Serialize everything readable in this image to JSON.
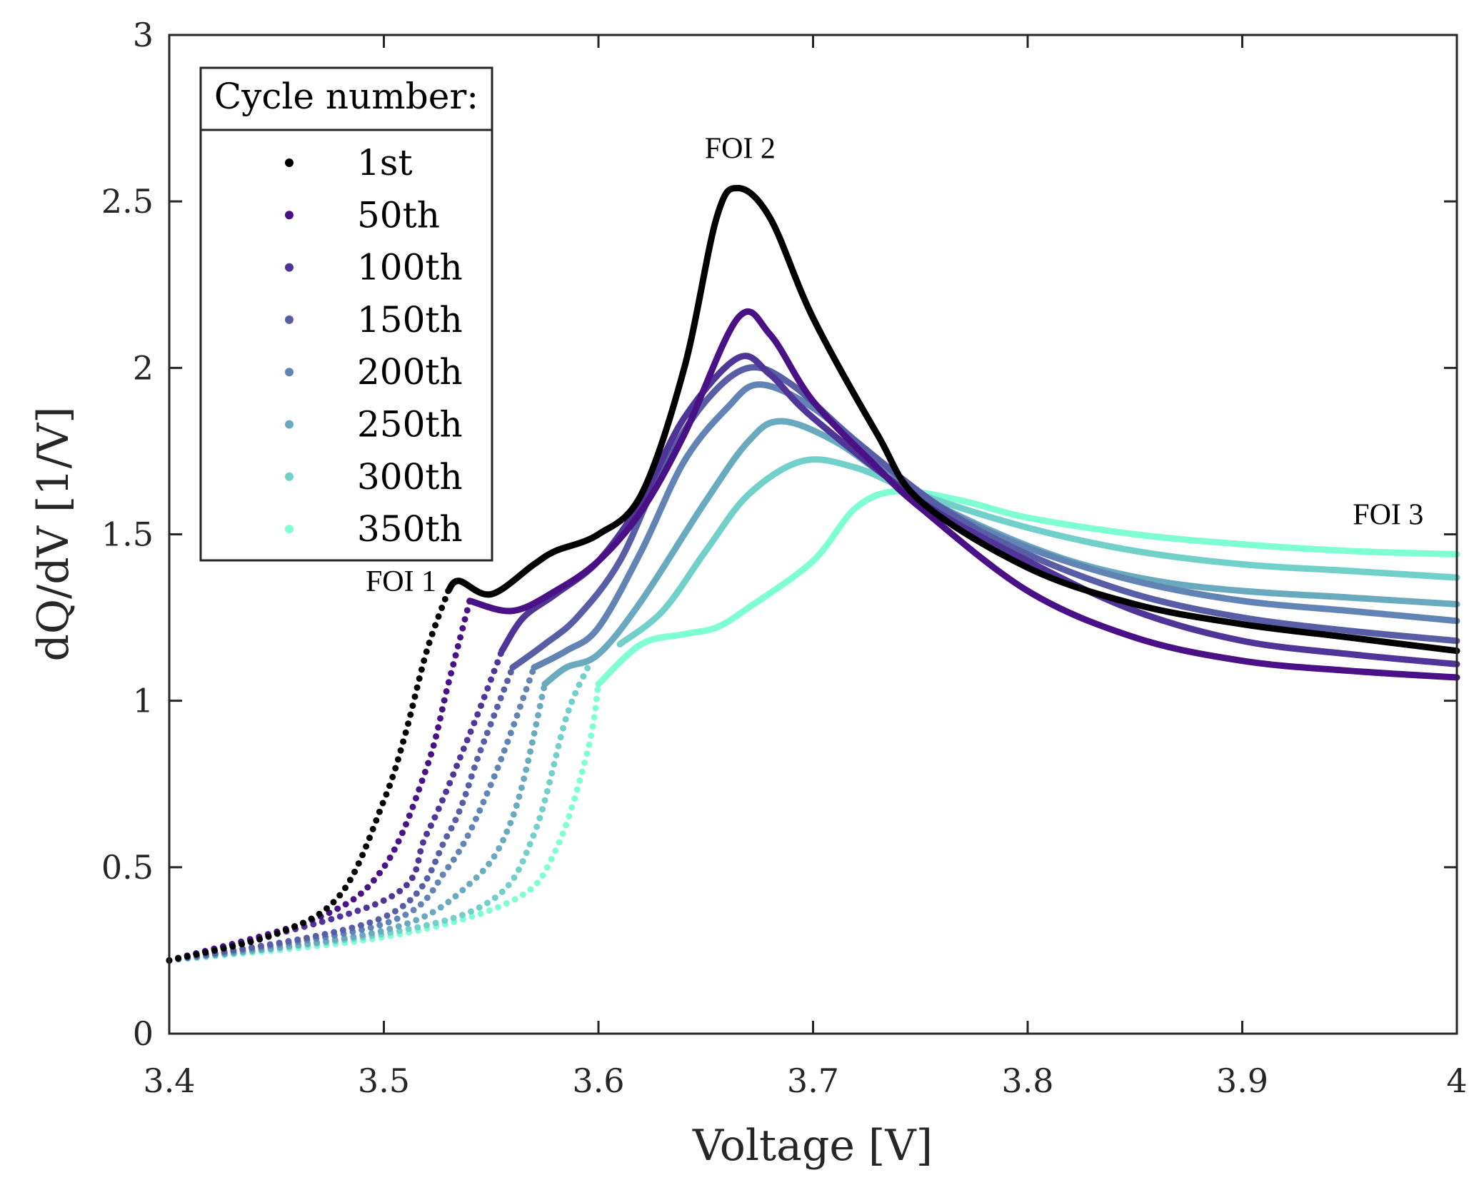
{
  "chart_data": {
    "type": "line",
    "xlabel": "Voltage [V]",
    "ylabel": "dQ/dV [1/V]",
    "xlim": [
      3.4,
      4.0
    ],
    "ylim": [
      0,
      3
    ],
    "xticks": [
      3.4,
      3.5,
      3.6,
      3.7,
      3.8,
      3.9,
      4
    ],
    "xtick_labels": [
      "3.4",
      "3.5",
      "3.6",
      "3.7",
      "3.8",
      "3.9",
      "4"
    ],
    "yticks": [
      0,
      0.5,
      1,
      1.5,
      2,
      2.5,
      3
    ],
    "ytick_labels": [
      "0",
      "0.5",
      "1",
      "1.5",
      "2",
      "2.5",
      "3"
    ],
    "grid": false,
    "legend": {
      "title": "Cycle number:",
      "placement": "top-left"
    },
    "annotations": [
      {
        "text": "FOI 1",
        "x": 3.508,
        "y": 1.33
      },
      {
        "text": "FOI 2",
        "x": 3.666,
        "y": 2.63
      },
      {
        "text": "FOI 3",
        "x": 3.968,
        "y": 1.53
      }
    ],
    "series": [
      {
        "name": "1st",
        "color": "#000000",
        "dots_until": 3.53,
        "x": [
          3.4,
          3.45,
          3.48,
          3.5,
          3.51,
          3.52,
          3.53,
          3.535,
          3.55,
          3.57,
          3.58,
          3.6,
          3.62,
          3.64,
          3.655,
          3.665,
          3.68,
          3.7,
          3.73,
          3.75,
          3.8,
          3.85,
          3.9,
          3.95,
          4.0
        ],
        "y": [
          0.22,
          0.3,
          0.42,
          0.7,
          0.9,
          1.15,
          1.33,
          1.36,
          1.32,
          1.41,
          1.45,
          1.5,
          1.62,
          2.0,
          2.45,
          2.54,
          2.45,
          2.15,
          1.8,
          1.6,
          1.4,
          1.29,
          1.23,
          1.19,
          1.15
        ]
      },
      {
        "name": "50th",
        "color": "#4a1186",
        "dots_until": 3.54,
        "x": [
          3.4,
          3.47,
          3.5,
          3.52,
          3.53,
          3.54,
          3.56,
          3.58,
          3.6,
          3.62,
          3.64,
          3.665,
          3.68,
          3.7,
          3.73,
          3.75,
          3.8,
          3.85,
          3.9,
          3.95,
          4.0
        ],
        "y": [
          0.22,
          0.35,
          0.5,
          0.8,
          1.05,
          1.3,
          1.27,
          1.33,
          1.42,
          1.57,
          1.8,
          2.15,
          2.1,
          1.9,
          1.7,
          1.58,
          1.33,
          1.19,
          1.12,
          1.09,
          1.07
        ]
      },
      {
        "name": "100th",
        "color": "#4f3597",
        "dots_until": 3.555,
        "x": [
          3.4,
          3.5,
          3.52,
          3.54,
          3.555,
          3.565,
          3.58,
          3.6,
          3.62,
          3.64,
          3.665,
          3.68,
          3.7,
          3.75,
          3.8,
          3.85,
          3.9,
          3.95,
          4.0
        ],
        "y": [
          0.22,
          0.4,
          0.6,
          0.9,
          1.15,
          1.25,
          1.32,
          1.42,
          1.6,
          1.85,
          2.03,
          1.98,
          1.85,
          1.6,
          1.42,
          1.27,
          1.18,
          1.14,
          1.11
        ]
      },
      {
        "name": "150th",
        "color": "#575ea6",
        "dots_until": 3.56,
        "x": [
          3.4,
          3.5,
          3.53,
          3.545,
          3.56,
          3.575,
          3.59,
          3.61,
          3.63,
          3.65,
          3.67,
          3.69,
          3.72,
          3.76,
          3.8,
          3.85,
          3.9,
          3.95,
          4.0
        ],
        "y": [
          0.22,
          0.35,
          0.6,
          0.85,
          1.1,
          1.17,
          1.25,
          1.42,
          1.7,
          1.9,
          2.0,
          1.95,
          1.78,
          1.58,
          1.44,
          1.32,
          1.25,
          1.21,
          1.18
        ]
      },
      {
        "name": "200th",
        "color": "#6284b4",
        "dots_until": 3.57,
        "x": [
          3.4,
          3.5,
          3.53,
          3.55,
          3.57,
          3.585,
          3.6,
          3.62,
          3.64,
          3.66,
          3.675,
          3.7,
          3.73,
          3.76,
          3.8,
          3.85,
          3.9,
          3.95,
          4.0
        ],
        "y": [
          0.22,
          0.33,
          0.5,
          0.75,
          1.1,
          1.15,
          1.22,
          1.45,
          1.72,
          1.88,
          1.95,
          1.88,
          1.72,
          1.58,
          1.46,
          1.36,
          1.3,
          1.27,
          1.24
        ]
      },
      {
        "name": "250th",
        "color": "#6aaabf",
        "dots_until": 3.575,
        "x": [
          3.4,
          3.5,
          3.54,
          3.56,
          3.575,
          3.585,
          3.6,
          3.62,
          3.65,
          3.67,
          3.685,
          3.71,
          3.74,
          3.78,
          3.82,
          3.86,
          3.9,
          3.95,
          4.0
        ],
        "y": [
          0.22,
          0.31,
          0.45,
          0.65,
          1.05,
          1.1,
          1.14,
          1.3,
          1.6,
          1.78,
          1.84,
          1.78,
          1.65,
          1.52,
          1.42,
          1.36,
          1.33,
          1.31,
          1.29
        ]
      },
      {
        "name": "300th",
        "color": "#72d0ca",
        "dots_until": 3.6,
        "x": [
          3.4,
          3.5,
          3.55,
          3.57,
          3.585,
          3.595,
          3.61,
          3.63,
          3.65,
          3.67,
          3.695,
          3.72,
          3.75,
          3.8,
          3.85,
          3.9,
          3.95,
          4.0
        ],
        "y": [
          0.22,
          0.3,
          0.4,
          0.6,
          0.95,
          1.1,
          1.17,
          1.27,
          1.45,
          1.62,
          1.72,
          1.7,
          1.62,
          1.52,
          1.45,
          1.41,
          1.39,
          1.37
        ]
      },
      {
        "name": "350th",
        "color": "#7fffd4",
        "dots_until": 3.6,
        "x": [
          3.4,
          3.5,
          3.56,
          3.58,
          3.595,
          3.6,
          3.62,
          3.64,
          3.655,
          3.67,
          3.7,
          3.72,
          3.74,
          3.77,
          3.8,
          3.85,
          3.9,
          3.95,
          4.0
        ],
        "y": [
          0.22,
          0.29,
          0.4,
          0.55,
          0.85,
          1.05,
          1.17,
          1.2,
          1.22,
          1.28,
          1.42,
          1.58,
          1.63,
          1.6,
          1.55,
          1.5,
          1.47,
          1.45,
          1.44
        ]
      }
    ]
  }
}
